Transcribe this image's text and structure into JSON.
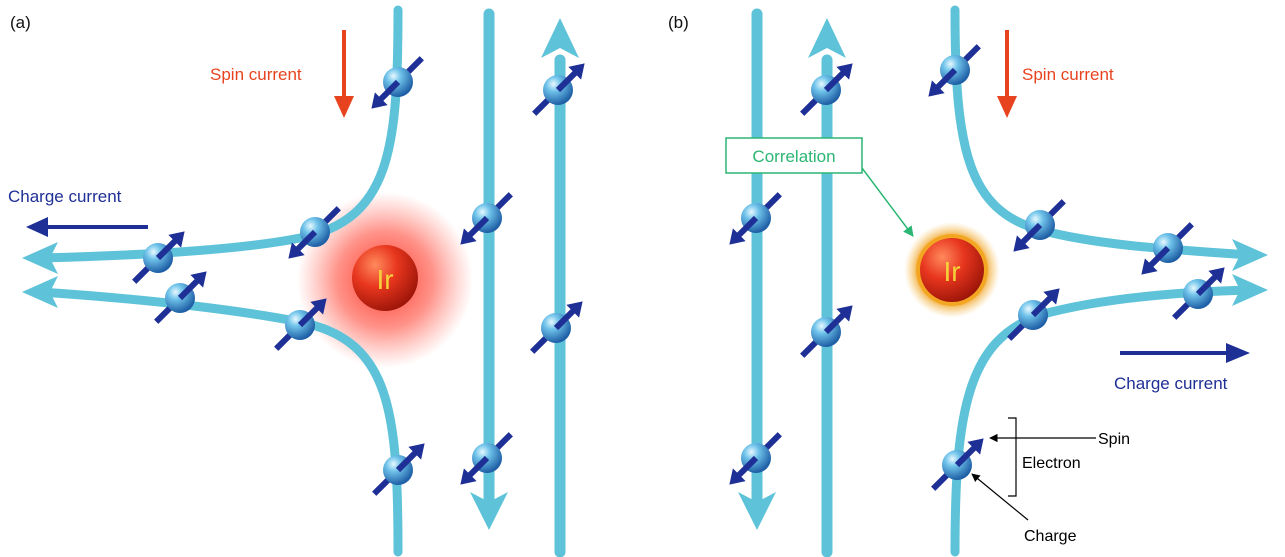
{
  "panels": [
    {
      "id": "a",
      "label": "(a)",
      "spin_current_label": "Spin current",
      "charge_current_label": "Charge current",
      "atom_symbol": "Ir"
    },
    {
      "id": "b",
      "label": "(b)",
      "spin_current_label": "Spin current",
      "charge_current_label": "Charge current",
      "atom_symbol": "Ir",
      "correlation_label": "Correlation",
      "legend": {
        "spin": "Spin",
        "electron": "Electron",
        "charge": "Charge"
      }
    }
  ],
  "colors": {
    "path": "#5ec3d9",
    "path_dark": "#3a9fbf",
    "spin_arrow": "#1e2f95",
    "spin_current_arrow": "#e8431f",
    "charge_current_arrow": "#1e2f95",
    "atom": "#d8281a",
    "atom_text": "#f5d13a",
    "correlation_box": "#2bb673",
    "glow_a": "#ff2a1a",
    "glow_b": "#f0a020"
  }
}
